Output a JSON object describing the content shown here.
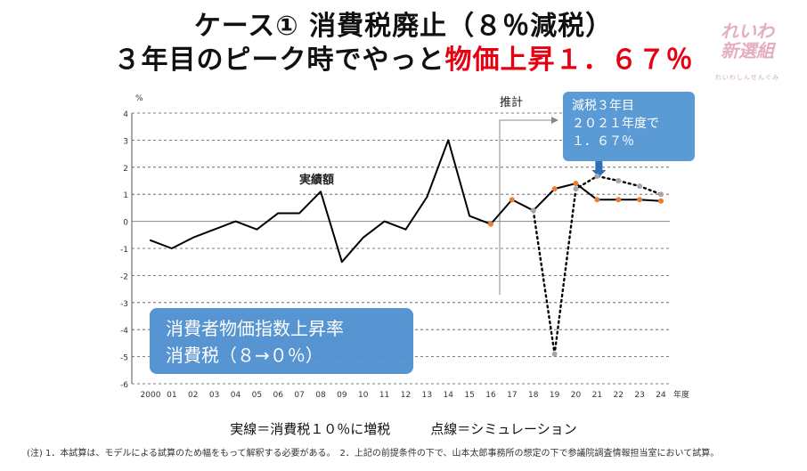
{
  "title": {
    "line1": "ケース① 消費税廃止（８％減税）",
    "line2_black": "３年目のピーク時でやっと",
    "line2_red": "物価上昇１．６７％"
  },
  "logo": {
    "text": "れいわ 新選組",
    "sub": "れいわしんせんぐみ"
  },
  "annotations": {
    "forecast": "推計",
    "actual_label": "実績額",
    "callout": [
      "減税３年目",
      "２０２１年度で",
      "１．６７％"
    ],
    "legend_box": [
      "消費者物価指数上昇率",
      "消費税（８→０％）"
    ]
  },
  "caption": "実線＝消費税１０％に増税　　　点線＝シミュレーション",
  "footnote": "(注) 1．本試算は、モデルによる試算のため幅をもって解釈する必要がある。　2．上記の前提条件の下で、山本太郎事務所の想定の下で参議院調査情報担当室において試算。",
  "chart_data": {
    "type": "line",
    "ylabel": "%",
    "xlabel": "年度",
    "ylim": [
      -6,
      4
    ],
    "yticks": [
      "4",
      "3",
      "2",
      "1",
      "0",
      "-1",
      "-2",
      "-3",
      "-4",
      "-5",
      "-6"
    ],
    "x": [
      "2000",
      "01",
      "02",
      "03",
      "04",
      "05",
      "06",
      "07",
      "08",
      "09",
      "10",
      "11",
      "12",
      "13",
      "14",
      "15",
      "16",
      "17",
      "18",
      "19",
      "20",
      "21",
      "22",
      "23",
      "24"
    ],
    "grid": true,
    "series": [
      {
        "name": "実線＝消費税１０％に増税",
        "style": "solid",
        "color": "#000000",
        "x": [
          "2000",
          "01",
          "02",
          "03",
          "04",
          "05",
          "06",
          "07",
          "08",
          "09",
          "10",
          "11",
          "12",
          "13",
          "14",
          "15",
          "16",
          "17",
          "18",
          "19",
          "20",
          "21",
          "22",
          "23",
          "24"
        ],
        "values": [
          -0.7,
          -1.0,
          -0.6,
          -0.3,
          0.0,
          -0.3,
          0.3,
          0.3,
          1.1,
          -1.5,
          -0.6,
          0.0,
          -0.3,
          0.9,
          3.0,
          0.2,
          -0.1,
          0.8,
          0.4,
          1.2,
          1.4,
          0.8,
          0.8,
          0.8,
          0.75
        ],
        "marker_from": "16",
        "marker_color": "#ed7d31"
      },
      {
        "name": "点線＝シミュレーション",
        "style": "dotted",
        "color": "#000000",
        "x": [
          "18",
          "19",
          "20",
          "21",
          "22",
          "23",
          "24"
        ],
        "values": [
          0.4,
          -4.9,
          1.2,
          1.67,
          1.5,
          1.3,
          1.0
        ],
        "marker_color": "#a6a6a6"
      }
    ]
  }
}
